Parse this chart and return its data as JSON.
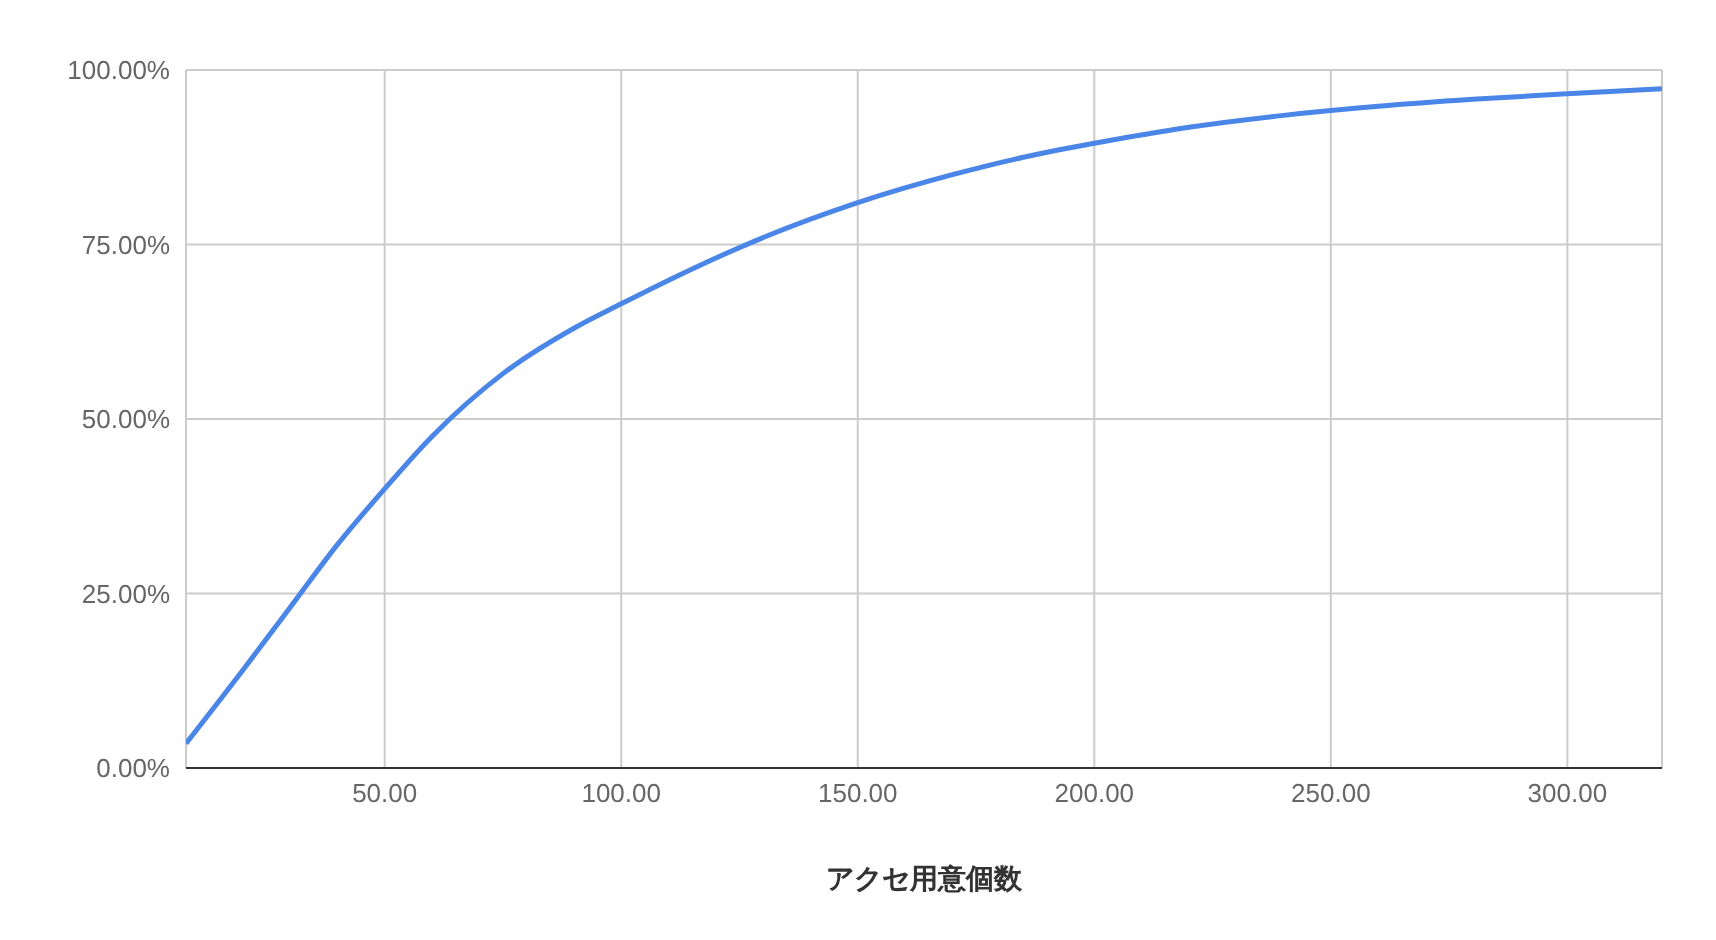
{
  "chart_data": {
    "type": "line",
    "xlabel": "アクセ用意個数",
    "x": [
      8,
      20,
      30,
      40,
      50,
      60,
      75,
      90,
      100,
      115,
      130,
      150,
      170,
      185,
      200,
      220,
      240,
      260,
      280,
      300,
      320
    ],
    "series": [
      {
        "color": "#4a86e8",
        "values": [
          3.5,
          14,
          23,
          32,
          40,
          47.5,
          56.5,
          63,
          66.5,
          71.5,
          76,
          81,
          85,
          87.5,
          89.5,
          91.8,
          93.5,
          94.8,
          95.8,
          96.6,
          97.3
        ]
      }
    ],
    "xlim": [
      8,
      320
    ],
    "xticks": [
      {
        "value": 50,
        "label": "50.00"
      },
      {
        "value": 100,
        "label": "100.00"
      },
      {
        "value": 150,
        "label": "150.00"
      },
      {
        "value": 200,
        "label": "200.00"
      },
      {
        "value": 250,
        "label": "250.00"
      },
      {
        "value": 300,
        "label": "300.00"
      }
    ],
    "ylim": [
      0,
      100
    ],
    "yticks": [
      {
        "value": 0,
        "label": "0.00%"
      },
      {
        "value": 25,
        "label": "25.00%"
      },
      {
        "value": 50,
        "label": "50.00%"
      },
      {
        "value": 75,
        "label": "75.00%"
      },
      {
        "value": 100,
        "label": "100.00%"
      }
    ],
    "grid": true,
    "marker": "none",
    "line_style": "solid",
    "legend": false
  }
}
